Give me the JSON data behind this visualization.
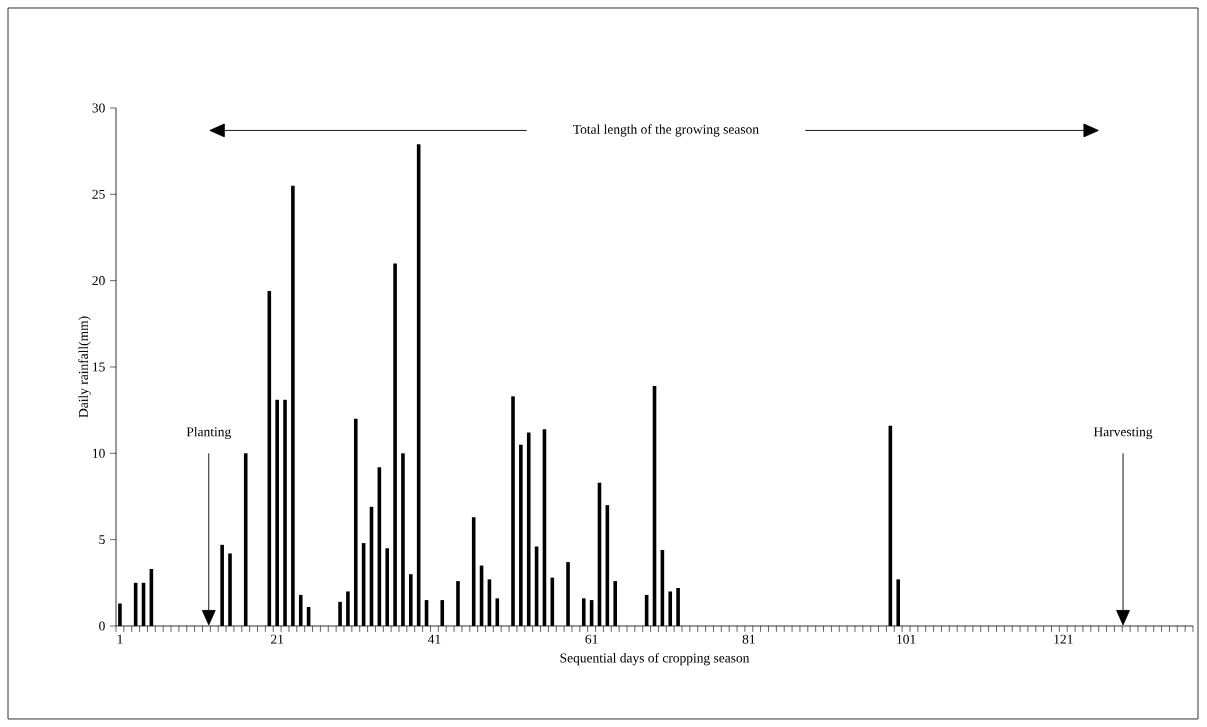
{
  "chart_data": {
    "type": "bar",
    "xlabel": "Sequential days of cropping season",
    "ylabel": "Daily rainfall(mm)",
    "color": "#000000",
    "x": [
      1,
      3,
      4,
      5,
      14,
      15,
      17,
      20,
      21,
      22,
      23,
      24,
      25,
      29,
      30,
      31,
      32,
      33,
      34,
      35,
      36,
      37,
      38,
      39,
      40,
      42,
      44,
      46,
      47,
      48,
      49,
      51,
      52,
      53,
      54,
      55,
      56,
      58,
      60,
      61,
      62,
      63,
      64,
      68,
      69,
      70,
      71,
      72,
      99,
      100
    ],
    "values": [
      1.3,
      2.5,
      2.5,
      3.3,
      4.7,
      4.2,
      10.0,
      19.4,
      13.1,
      13.1,
      25.5,
      1.8,
      1.1,
      1.4,
      2.0,
      12.0,
      4.8,
      6.9,
      9.2,
      4.5,
      21.0,
      10.0,
      3.0,
      27.9,
      1.5,
      1.5,
      2.6,
      6.3,
      3.5,
      2.7,
      1.6,
      13.3,
      10.5,
      11.2,
      4.6,
      11.4,
      2.8,
      3.7,
      1.6,
      1.5,
      8.3,
      7.0,
      2.6,
      1.8,
      13.9,
      4.4,
      2.0,
      2.2,
      11.6,
      2.7
    ],
    "xlim": [
      0.5,
      137.5
    ],
    "xticks": [
      1,
      21,
      41,
      61,
      81,
      101,
      121,
      {
        "value": 0.5,
        "label": null
      },
      {
        "value": 1.5,
        "label": null
      },
      {
        "value": 2.5,
        "label": null
      },
      {
        "value": 3.5,
        "label": null
      },
      {
        "value": 4.5,
        "label": null
      },
      {
        "value": 5.5,
        "label": null
      },
      {
        "value": 6.5,
        "label": null
      },
      {
        "value": 7.5,
        "label": null
      },
      {
        "value": 8.5,
        "label": null
      },
      {
        "value": 9.5,
        "label": null
      },
      {
        "value": 10.5,
        "label": null
      },
      {
        "value": 11.5,
        "label": null
      },
      {
        "value": 12.5,
        "label": null
      },
      {
        "value": 13.5,
        "label": null
      },
      {
        "value": 14.5,
        "label": null
      },
      {
        "value": 15.5,
        "label": null
      },
      {
        "value": 16.5,
        "label": null
      },
      {
        "value": 17.5,
        "label": null
      },
      {
        "value": 18.5,
        "label": null
      },
      {
        "value": 19.5,
        "label": null
      },
      {
        "value": 20.5,
        "label": null
      },
      {
        "value": 21.5,
        "label": null
      },
      {
        "value": 22.5,
        "label": null
      },
      {
        "value": 23.5,
        "label": null
      },
      {
        "value": 24.5,
        "label": null
      },
      {
        "value": 25.5,
        "label": null
      },
      {
        "value": 26.5,
        "label": null
      },
      {
        "value": 27.5,
        "label": null
      },
      {
        "value": 28.5,
        "label": null
      },
      {
        "value": 29.5,
        "label": null
      },
      {
        "value": 30.5,
        "label": null
      },
      {
        "value": 31.5,
        "label": null
      },
      {
        "value": 32.5,
        "label": null
      },
      {
        "value": 33.5,
        "label": null
      },
      {
        "value": 34.5,
        "label": null
      },
      {
        "value": 35.5,
        "label": null
      },
      {
        "value": 36.5,
        "label": null
      },
      {
        "value": 37.5,
        "label": null
      },
      {
        "value": 38.5,
        "label": null
      },
      {
        "value": 39.5,
        "label": null
      },
      {
        "value": 40.5,
        "label": null
      },
      {
        "value": 41.5,
        "label": null
      },
      {
        "value": 42.5,
        "label": null
      },
      {
        "value": 43.5,
        "label": null
      },
      {
        "value": 44.5,
        "label": null
      },
      {
        "value": 45.5,
        "label": null
      },
      {
        "value": 46.5,
        "label": null
      },
      {
        "value": 47.5,
        "label": null
      },
      {
        "value": 48.5,
        "label": null
      },
      {
        "value": 49.5,
        "label": null
      },
      {
        "value": 50.5,
        "label": null
      },
      {
        "value": 51.5,
        "label": null
      },
      {
        "value": 52.5,
        "label": null
      },
      {
        "value": 53.5,
        "label": null
      },
      {
        "value": 54.5,
        "label": null
      },
      {
        "value": 55.5,
        "label": null
      },
      {
        "value": 56.5,
        "label": null
      },
      {
        "value": 57.5,
        "label": null
      },
      {
        "value": 58.5,
        "label": null
      },
      {
        "value": 59.5,
        "label": null
      },
      {
        "value": 60.5,
        "label": null
      },
      {
        "value": 61.5,
        "label": null
      },
      {
        "value": 62.5,
        "label": null
      },
      {
        "value": 63.5,
        "label": null
      },
      {
        "value": 64.5,
        "label": null
      },
      {
        "value": 65.5,
        "label": null
      },
      {
        "value": 66.5,
        "label": null
      },
      {
        "value": 67.5,
        "label": null
      },
      {
        "value": 68.5,
        "label": null
      },
      {
        "value": 69.5,
        "label": null
      },
      {
        "value": 70.5,
        "label": null
      },
      {
        "value": 71.5,
        "label": null
      },
      {
        "value": 72.5,
        "label": null
      },
      {
        "value": 73.5,
        "label": null
      },
      {
        "value": 74.5,
        "label": null
      },
      {
        "value": 75.5,
        "label": null
      },
      {
        "value": 76.5,
        "label": null
      },
      {
        "value": 77.5,
        "label": null
      },
      {
        "value": 78.5,
        "label": null
      },
      {
        "value": 79.5,
        "label": null
      },
      {
        "value": 80.5,
        "label": null
      },
      {
        "value": 81.5,
        "label": null
      },
      {
        "value": 82.5,
        "label": null
      },
      {
        "value": 83.5,
        "label": null
      },
      {
        "value": 84.5,
        "label": null
      },
      {
        "value": 85.5,
        "label": null
      },
      {
        "value": 86.5,
        "label": null
      },
      {
        "value": 87.5,
        "label": null
      },
      {
        "value": 88.5,
        "label": null
      },
      {
        "value": 89.5,
        "label": null
      },
      {
        "value": 90.5,
        "label": null
      },
      {
        "value": 91.5,
        "label": null
      },
      {
        "value": 92.5,
        "label": null
      },
      {
        "value": 93.5,
        "label": null
      },
      {
        "value": 94.5,
        "label": null
      },
      {
        "value": 95.5,
        "label": null
      },
      {
        "value": 96.5,
        "label": null
      },
      {
        "value": 97.5,
        "label": null
      },
      {
        "value": 98.5,
        "label": null
      },
      {
        "value": 99.5,
        "label": null
      },
      {
        "value": 100.5,
        "label": null
      },
      {
        "value": 101.5,
        "label": null
      },
      {
        "value": 102.5,
        "label": null
      },
      {
        "value": 103.5,
        "label": null
      },
      {
        "value": 104.5,
        "label": null
      },
      {
        "value": 105.5,
        "label": null
      },
      {
        "value": 106.5,
        "label": null
      },
      {
        "value": 107.5,
        "label": null
      },
      {
        "value": 108.5,
        "label": null
      },
      {
        "value": 109.5,
        "label": null
      },
      {
        "value": 110.5,
        "label": null
      },
      {
        "value": 111.5,
        "label": null
      },
      {
        "value": 112.5,
        "label": null
      },
      {
        "value": 113.5,
        "label": null
      },
      {
        "value": 114.5,
        "label": null
      },
      {
        "value": 115.5,
        "label": null
      },
      {
        "value": 116.5,
        "label": null
      },
      {
        "value": 117.5,
        "label": null
      },
      {
        "value": 118.5,
        "label": null
      },
      {
        "value": 119.5,
        "label": null
      },
      {
        "value": 120.5,
        "label": null
      },
      {
        "value": 121.5,
        "label": null
      },
      {
        "value": 122.5,
        "label": null
      },
      {
        "value": 123.5,
        "label": null
      },
      {
        "value": 124.5,
        "label": null
      },
      {
        "value": 125.5,
        "label": null
      },
      {
        "value": 126.5,
        "label": null
      },
      {
        "value": 127.5,
        "label": null
      },
      {
        "value": 128.5,
        "label": null
      },
      {
        "value": 129.5,
        "label": null
      },
      {
        "value": 130.5,
        "label": null
      },
      {
        "value": 131.5,
        "label": null
      },
      {
        "value": 132.5,
        "label": null
      },
      {
        "value": 133.5,
        "label": null
      },
      {
        "value": 134.5,
        "label": null
      },
      {
        "value": 135.5,
        "label": null
      },
      {
        "value": 136.5,
        "label": null
      },
      {
        "value": 137.5,
        "label": null
      }
    ],
    "ylim": [
      0,
      30
    ],
    "yticks": [
      0,
      5,
      10,
      15,
      20,
      25,
      30
    ],
    "annotations": [
      "Total length of the growing season"
    ],
    "ref_lines": [
      {
        "axis": "x",
        "value": 12.3,
        "label": "Planting"
      },
      {
        "axis": "x",
        "value": 128.6,
        "label": "Harvesting"
      }
    ]
  }
}
